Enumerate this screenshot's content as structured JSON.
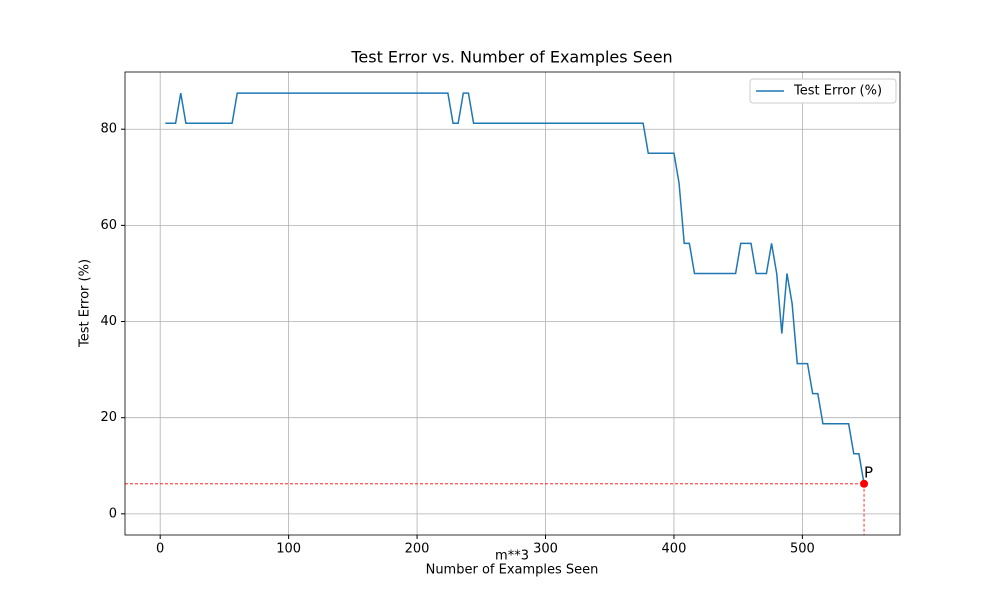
{
  "chart_data": {
    "type": "line",
    "title": "Test Error vs. Number of Examples Seen",
    "xlabel": "Number of Examples Seen",
    "ylabel": "Test Error (%)",
    "x": [
      4,
      12,
      16,
      20,
      56,
      60,
      224,
      228,
      232,
      236,
      240,
      244,
      376,
      380,
      400,
      404,
      408,
      412,
      416,
      448,
      452,
      460,
      464,
      472,
      476,
      480,
      484,
      488,
      492,
      496,
      504,
      508,
      512,
      516,
      536,
      540,
      544,
      548
    ],
    "series": [
      {
        "name": "Test Error (%)",
        "color": "#1f77b4",
        "values": [
          81.25,
          81.25,
          87.5,
          81.25,
          81.25,
          87.5,
          87.5,
          81.25,
          81.25,
          87.5,
          87.5,
          81.25,
          81.25,
          75,
          75,
          68.75,
          56.25,
          56.25,
          50,
          50,
          56.25,
          56.25,
          50,
          50,
          56.25,
          50,
          37.5,
          50,
          43.75,
          31.25,
          31.25,
          25,
          25,
          18.75,
          18.75,
          12.5,
          12.5,
          6.25
        ]
      }
    ],
    "point": {
      "label": "P",
      "x": 548,
      "y": 6.25,
      "color": "#ff0000"
    },
    "note": "m**3",
    "xlim": [
      -27.4,
      576
    ],
    "ylim": [
      -4.4,
      91.9
    ],
    "xticks": [
      0,
      100,
      200,
      300,
      400,
      500
    ],
    "yticks": [
      0,
      20,
      40,
      60,
      80
    ],
    "grid": true,
    "legend": "upper right"
  }
}
